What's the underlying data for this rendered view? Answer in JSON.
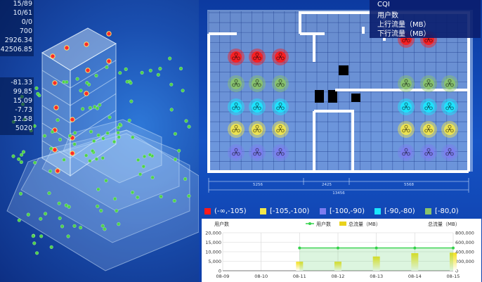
{
  "stats": {
    "top": [
      "15/89",
      "10/61",
      "0/0",
      "700",
      "2926.34",
      "42506.85"
    ],
    "bottom": [
      "-81.33",
      "99.85",
      "15.09",
      "-7.73",
      "12.58",
      "5020"
    ]
  },
  "info_legend": {
    "items": [
      "CQI",
      "用户数",
      "上行流量（MB）",
      "下行流量（MB）"
    ]
  },
  "plan": {
    "dimensions": [
      "5256",
      "2425",
      "5568",
      "13456"
    ]
  },
  "cqi_legend": [
    {
      "label": "(-∞,-105)",
      "color": "#ff1a1a"
    },
    {
      "label": "[-105,-100)",
      "color": "#f3e84a"
    },
    {
      "label": "[-100,-90)",
      "color": "#7c7cf0"
    },
    {
      "label": "[-90,-80)",
      "color": "#19e8ff"
    },
    {
      "label": "[-80,0)",
      "color": "#8ac46a"
    }
  ],
  "icons": {
    "signal": "signal-marker-icon",
    "user_dot": "user-dot-icon"
  },
  "chart_data": {
    "type": "bar",
    "categories": [
      "08-09",
      "08-10",
      "08-11",
      "08-12",
      "08-13",
      "08-14",
      "08-15"
    ],
    "series": [
      {
        "name": "用户数",
        "type": "line",
        "values": [
          null,
          null,
          12000,
          12000,
          12000,
          12000,
          12000
        ],
        "color": "#33d24a"
      },
      {
        "name": "总流量（MB）",
        "type": "bar",
        "values": [
          null,
          null,
          190000,
          190000,
          300000,
          370000,
          380000
        ],
        "color": "#e9d21c"
      }
    ],
    "ylabel_left": "用户数",
    "ylabel_right": "总流量（MB）",
    "ylim_left": [
      0,
      20000
    ],
    "ylim_right": [
      0,
      800000
    ],
    "yticks_left": [
      "20,000",
      "15,000",
      "10,000",
      "5,000",
      "0"
    ],
    "yticks_right": [
      "800,000",
      "600,000",
      "400,000",
      "200,000",
      "0"
    ],
    "legend": "top-center",
    "grid": true
  }
}
